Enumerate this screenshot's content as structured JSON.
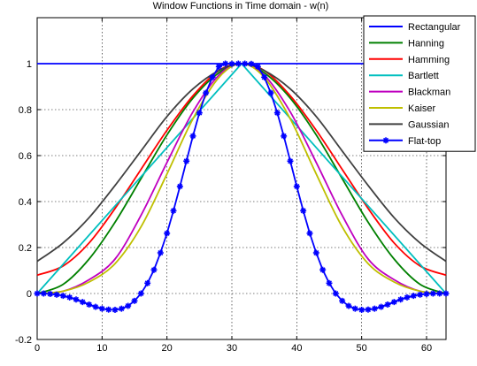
{
  "chart_data": {
    "type": "line",
    "title": "Window Functions in Time domain - w(n)",
    "xlabel": "",
    "ylabel": "",
    "xlim": [
      0,
      63
    ],
    "ylim": [
      -0.2,
      1.2
    ],
    "xticks": [
      0,
      10,
      20,
      30,
      40,
      50,
      60
    ],
    "xtick_labels": [
      "0",
      "10",
      "20",
      "30",
      "40",
      "50",
      "60"
    ],
    "yticks": [
      -0.2,
      0,
      0.2,
      0.4,
      0.6,
      0.8,
      1
    ],
    "ytick_labels": [
      "-0.2",
      "0",
      "0.2",
      "0.4",
      "0.6",
      "0.8",
      "1"
    ],
    "grid": true,
    "legend_position": "top-right",
    "n_points": 64,
    "series": [
      {
        "name": "Rectangular",
        "color": "#0000ff",
        "x": [
          0,
          63
        ],
        "values": [
          1,
          1
        ]
      },
      {
        "name": "Hanning",
        "color": "#008000",
        "x": [
          0,
          4,
          8,
          12,
          16,
          20,
          24,
          28,
          31.5,
          35,
          39,
          43,
          47,
          51,
          55,
          59,
          63
        ],
        "values": [
          0,
          0.04,
          0.15,
          0.31,
          0.5,
          0.69,
          0.85,
          0.96,
          1,
          0.96,
          0.85,
          0.69,
          0.5,
          0.31,
          0.15,
          0.04,
          0
        ]
      },
      {
        "name": "Hamming",
        "color": "#ff0000",
        "x": [
          0,
          4,
          8,
          12,
          16,
          20,
          24,
          28,
          31.5,
          35,
          39,
          43,
          47,
          51,
          55,
          59,
          63
        ],
        "values": [
          0.08,
          0.12,
          0.22,
          0.37,
          0.54,
          0.71,
          0.86,
          0.97,
          1,
          0.97,
          0.86,
          0.71,
          0.54,
          0.37,
          0.22,
          0.12,
          0.08
        ]
      },
      {
        "name": "Bartlett",
        "color": "#00bfbf",
        "x": [
          0,
          31.5,
          63
        ],
        "values": [
          0,
          1,
          0
        ]
      },
      {
        "name": "Blackman",
        "color": "#bf00bf",
        "x": [
          0,
          4,
          8,
          12,
          16,
          20,
          24,
          28,
          31.5,
          35,
          39,
          43,
          47,
          51,
          55,
          59,
          63
        ],
        "values": [
          0,
          0.01,
          0.06,
          0.15,
          0.34,
          0.57,
          0.79,
          0.95,
          1,
          0.95,
          0.79,
          0.57,
          0.34,
          0.15,
          0.06,
          0.01,
          0
        ]
      },
      {
        "name": "Kaiser",
        "color": "#bfbf00",
        "x": [
          0,
          4,
          8,
          12,
          16,
          20,
          24,
          28,
          31.5,
          35,
          39,
          43,
          47,
          51,
          55,
          59,
          63
        ],
        "values": [
          0,
          0.01,
          0.05,
          0.13,
          0.29,
          0.52,
          0.76,
          0.94,
          1,
          0.94,
          0.76,
          0.52,
          0.29,
          0.13,
          0.05,
          0.01,
          0
        ]
      },
      {
        "name": "Gaussian",
        "color": "#404040",
        "x": [
          0,
          4,
          8,
          12,
          16,
          20,
          24,
          28,
          31.5,
          35,
          39,
          43,
          47,
          51,
          55,
          59,
          63
        ],
        "values": [
          0.14,
          0.22,
          0.33,
          0.47,
          0.62,
          0.77,
          0.89,
          0.97,
          1,
          0.97,
          0.89,
          0.77,
          0.62,
          0.47,
          0.33,
          0.22,
          0.14
        ]
      },
      {
        "name": "Flat-top",
        "color": "#0000ff",
        "marker": "*",
        "x": [
          0,
          1,
          2,
          3,
          4,
          5,
          6,
          7,
          8,
          9,
          10,
          11,
          12,
          13,
          14,
          15,
          16,
          17,
          18,
          19,
          20,
          21,
          22,
          23,
          24,
          25,
          26,
          27,
          28,
          29,
          30,
          31,
          32,
          33,
          34,
          35,
          36,
          37,
          38,
          39,
          40,
          41,
          42,
          43,
          44,
          45,
          46,
          47,
          48,
          49,
          50,
          51,
          52,
          53,
          54,
          55,
          56,
          57,
          58,
          59,
          60,
          61,
          62,
          63
        ],
        "values": [
          0.0,
          -0.0,
          -0.002,
          -0.005,
          -0.01,
          -0.017,
          -0.026,
          -0.037,
          -0.048,
          -0.058,
          -0.066,
          -0.07,
          -0.071,
          -0.066,
          -0.054,
          -0.032,
          0.0,
          0.045,
          0.103,
          0.177,
          0.262,
          0.36,
          0.466,
          0.576,
          0.685,
          0.786,
          0.873,
          0.941,
          0.987,
          1.0,
          0.999,
          1.0,
          1.0,
          0.999,
          0.987,
          0.941,
          0.873,
          0.786,
          0.685,
          0.576,
          0.466,
          0.36,
          0.262,
          0.177,
          0.103,
          0.045,
          0.0,
          -0.032,
          -0.054,
          -0.066,
          -0.071,
          -0.07,
          -0.066,
          -0.058,
          -0.048,
          -0.037,
          -0.026,
          -0.017,
          -0.01,
          -0.005,
          -0.002,
          -0.0,
          0.0,
          0.0
        ]
      }
    ]
  }
}
